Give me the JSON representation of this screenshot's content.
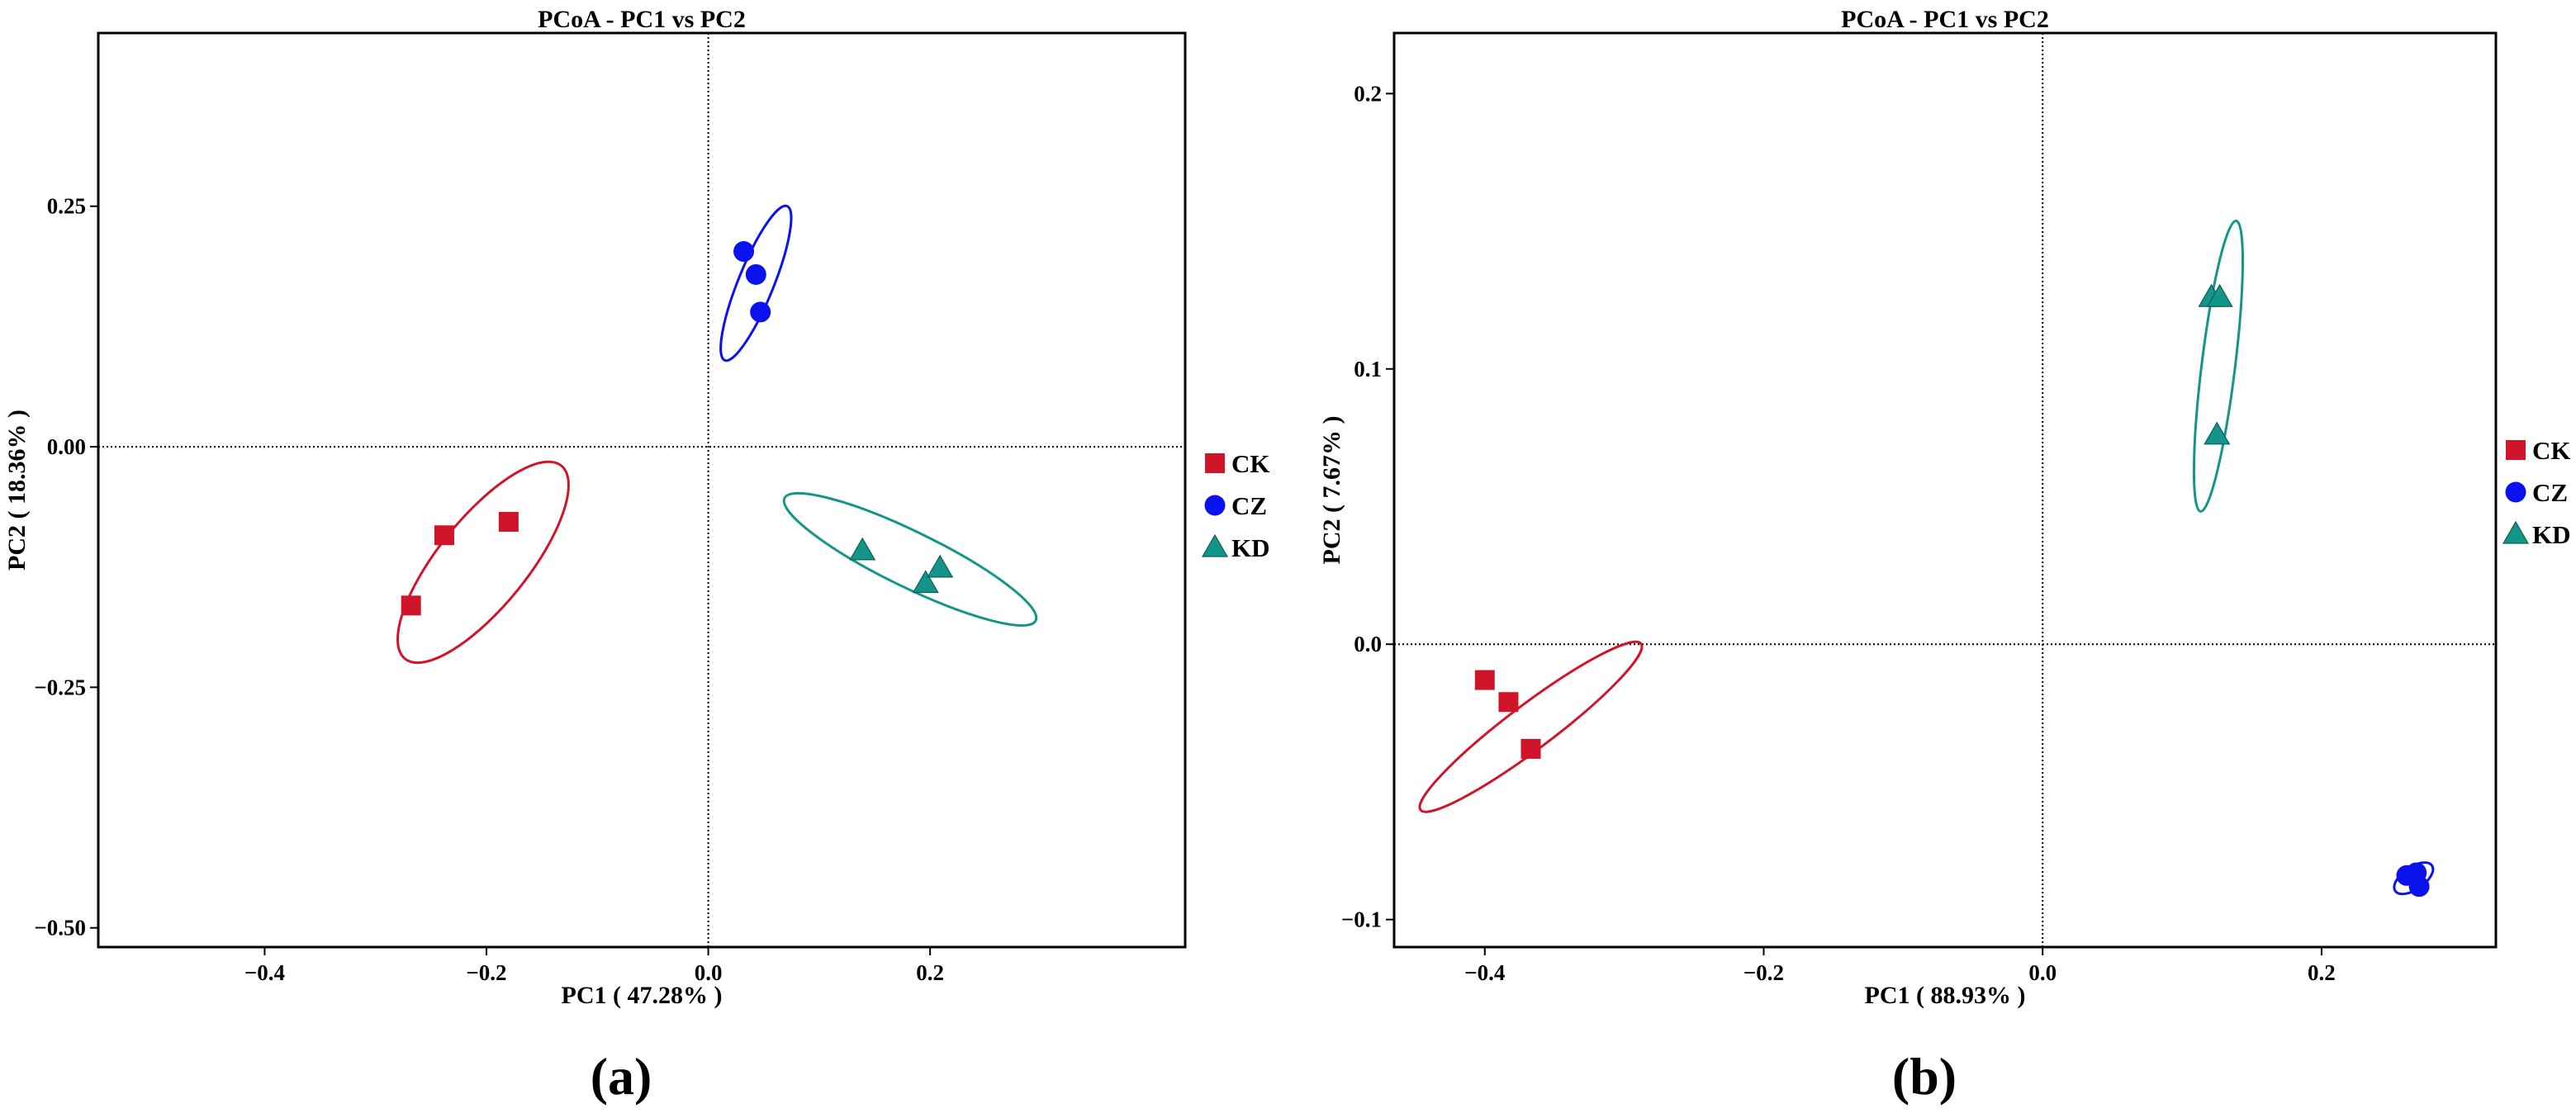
{
  "colors": {
    "CK": "#d0152b",
    "CZ": "#0a12ee",
    "KD": "#14958a"
  },
  "chart_data": [
    {
      "type": "scatter",
      "panel": "(a)",
      "title": "PCoA - PC1 vs PC2",
      "xlabel": "PC1 ( 47.28% )",
      "ylabel": "PC2 ( 18.36% )",
      "xlim": [
        -0.55,
        0.43
      ],
      "ylim": [
        -0.52,
        0.43
      ],
      "x_ticks": [
        -0.4,
        -0.2,
        0.0,
        0.2
      ],
      "x_tick_labels": [
        "−0.4",
        "−0.2",
        "0.0",
        "0.2"
      ],
      "y_ticks": [
        0.25,
        0.0,
        -0.25,
        -0.5
      ],
      "y_tick_labels": [
        "0.25",
        "0.00",
        "−0.25",
        "−0.50"
      ],
      "reference_lines": {
        "x": 0,
        "y": 0
      },
      "legend": {
        "position": "right",
        "entries": [
          "CK",
          "CZ",
          "KD"
        ]
      },
      "series": [
        {
          "name": "CK",
          "marker": "square",
          "points": [
            [
              -0.268,
              -0.165
            ],
            [
              -0.238,
              -0.092
            ],
            [
              -0.18,
              -0.078
            ]
          ],
          "ellipse": {
            "cx": -0.203,
            "cy": -0.12,
            "rx": 0.112,
            "ry": 0.04,
            "angle": 51
          }
        },
        {
          "name": "CZ",
          "marker": "circle",
          "points": [
            [
              0.032,
              0.203
            ],
            [
              0.043,
              0.179
            ],
            [
              0.047,
              0.14
            ]
          ],
          "ellipse": {
            "cx": 0.043,
            "cy": 0.17,
            "rx": 0.075,
            "ry": 0.016,
            "angle": 68
          }
        },
        {
          "name": "KD",
          "marker": "triangle",
          "points": [
            [
              0.139,
              -0.108
            ],
            [
              0.196,
              -0.142
            ],
            [
              0.209,
              -0.126
            ]
          ],
          "ellipse": {
            "cx": 0.182,
            "cy": -0.117,
            "rx": 0.126,
            "ry": 0.025,
            "angle": -26
          }
        }
      ]
    },
    {
      "type": "scatter",
      "panel": "(b)",
      "title": "PCoA - PC1 vs PC2",
      "xlabel": "PC1 ( 88.93% )",
      "ylabel": "PC2 ( 7.67% )",
      "xlim": [
        -0.465,
        0.325
      ],
      "ylim": [
        -0.11,
        0.222
      ],
      "x_ticks": [
        -0.4,
        -0.2,
        0.0,
        0.2
      ],
      "x_tick_labels": [
        "−0.4",
        "−0.2",
        "0.0",
        "0.2"
      ],
      "y_ticks": [
        0.2,
        0.1,
        0.0,
        -0.1
      ],
      "y_tick_labels": [
        "0.2",
        "0.1",
        "0.0",
        "−0.1"
      ],
      "reference_lines": {
        "x": 0,
        "y": 0
      },
      "legend": {
        "position": "right",
        "entries": [
          "CK",
          "CZ",
          "KD"
        ]
      },
      "series": [
        {
          "name": "CK",
          "marker": "square",
          "points": [
            [
              -0.4,
              -0.013
            ],
            [
              -0.383,
              -0.021
            ],
            [
              -0.367,
              -0.038
            ]
          ],
          "ellipse": {
            "cx": -0.367,
            "cy": -0.03,
            "rx": 0.099,
            "ry": 0.016,
            "angle": 37
          }
        },
        {
          "name": "CZ",
          "marker": "circle",
          "points": [
            [
              0.261,
              -0.084
            ],
            [
              0.268,
              -0.083
            ],
            [
              0.27,
              -0.088
            ]
          ],
          "ellipse": {
            "cx": 0.266,
            "cy": -0.085,
            "rx": 0.016,
            "ry": 0.008,
            "angle": 35
          }
        },
        {
          "name": "KD",
          "marker": "triangle",
          "points": [
            [
              0.121,
              0.126
            ],
            [
              0.127,
              0.126
            ],
            [
              0.125,
              0.076
            ]
          ],
          "ellipse": {
            "cx": 0.126,
            "cy": 0.101,
            "rx": 0.105,
            "ry": 0.012,
            "angle": 83
          }
        }
      ]
    }
  ]
}
